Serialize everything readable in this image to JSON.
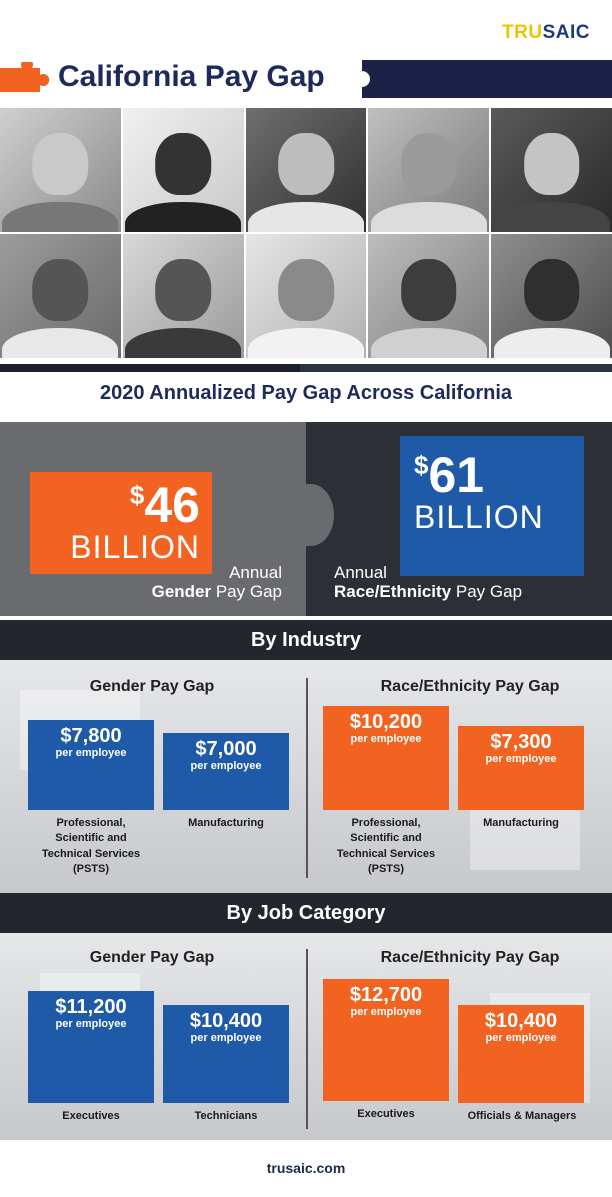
{
  "brand": {
    "logo_part1": "TRU",
    "logo_part2": "SAIC",
    "logo_color1": "#f2c200",
    "logo_color2": "#1e3a7a"
  },
  "title": "California Pay Gap",
  "headline": "2020 Annualized Pay Gap Across California",
  "totals": {
    "gender": {
      "symbol": "$",
      "amount": "46",
      "unit": "BILLION",
      "caption_line1": "Annual",
      "caption_bold": "Gender",
      "caption_rest": " Pay Gap"
    },
    "race": {
      "symbol": "$",
      "amount": "61",
      "unit": "BILLION",
      "caption_line1": "Annual",
      "caption_bold": "Race/Ethnicity",
      "caption_rest": " Pay Gap"
    }
  },
  "by_industry": {
    "title": "By Industry",
    "gender": {
      "heading": "Gender Pay Gap",
      "items": [
        {
          "amount": "$7,800",
          "per": "per employee",
          "label_lines": [
            "Professional,",
            "Scientific and",
            "Technical Services",
            "(PSTS)"
          ]
        },
        {
          "amount": "$7,000",
          "per": "per employee",
          "label_lines": [
            "Manufacturing"
          ]
        }
      ]
    },
    "race": {
      "heading": "Race/Ethnicity Pay Gap",
      "items": [
        {
          "amount": "$10,200",
          "per": "per employee",
          "label_lines": [
            "Professional,",
            "Scientific and",
            "Technical Services",
            "(PSTS)"
          ]
        },
        {
          "amount": "$7,300",
          "per": "per employee",
          "label_lines": [
            "Manufacturing"
          ]
        }
      ]
    }
  },
  "by_job": {
    "title": "By Job Category",
    "gender": {
      "heading": "Gender Pay Gap",
      "items": [
        {
          "amount": "$11,200",
          "per": "per employee",
          "label_lines": [
            "Executives"
          ]
        },
        {
          "amount": "$10,400",
          "per": "per employee",
          "label_lines": [
            "Technicians"
          ]
        }
      ]
    },
    "race": {
      "heading": "Race/Ethnicity Pay Gap",
      "items": [
        {
          "amount": "$12,700",
          "per": "per employee",
          "label_lines": [
            "Executives"
          ]
        },
        {
          "amount": "$10,400",
          "per": "per employee",
          "label_lines": [
            "Officials & Managers"
          ]
        }
      ]
    }
  },
  "colors": {
    "orange": "#f26322",
    "blue": "#1e5aa8",
    "navy": "#1d2147",
    "dark": "#23262c"
  },
  "footer": "trusaic.com"
}
